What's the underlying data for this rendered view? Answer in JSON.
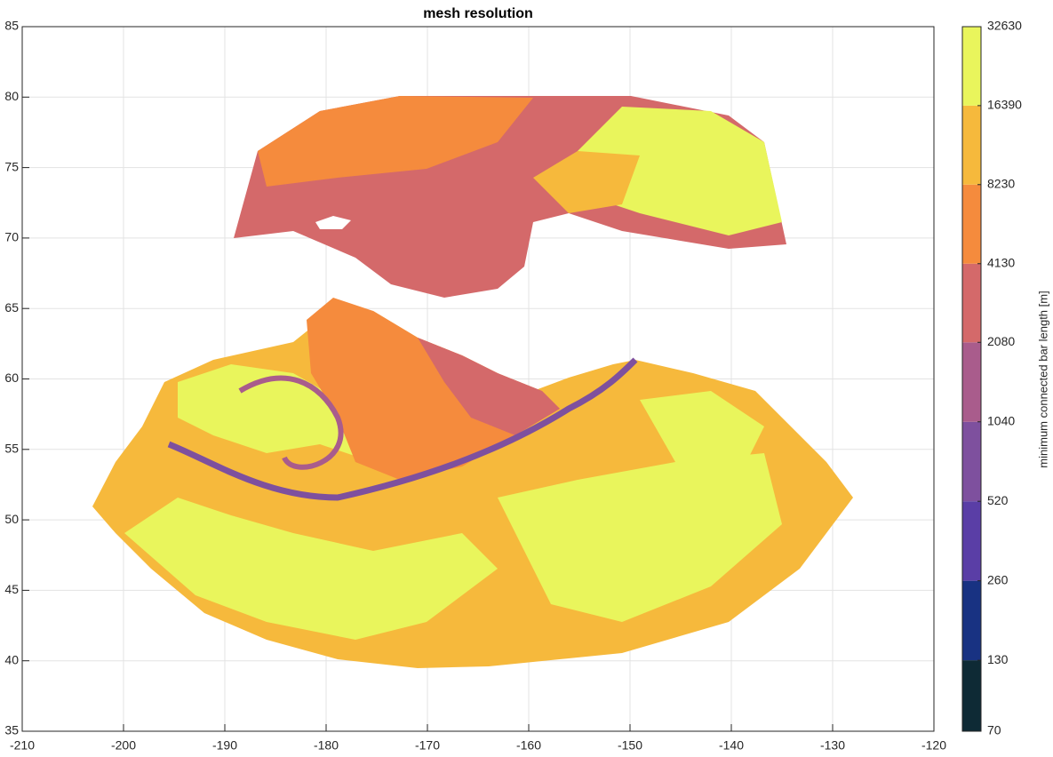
{
  "chart_data": {
    "type": "map",
    "title": "mesh resolution",
    "xlim": [
      -210,
      -120
    ],
    "xticks": [
      -210,
      -200,
      -190,
      -180,
      -170,
      -160,
      -150,
      -140,
      -130,
      -120
    ],
    "ylim": [
      35,
      85
    ],
    "yticks": [
      35,
      40,
      45,
      50,
      55,
      60,
      65,
      70,
      75,
      80,
      85
    ],
    "grid": true,
    "colorbar": {
      "label": "minimum connected bar length [m]",
      "log_scale": true,
      "lim": [
        70,
        32630
      ],
      "ticks": [
        70,
        130,
        260,
        520,
        1040,
        2080,
        4130,
        8230,
        16390,
        32630
      ],
      "colors": [
        "#0e2a35",
        "#183282",
        "#5a3ea6",
        "#7e509e",
        "#a95c8c",
        "#d4696a",
        "#f58b3d",
        "#f6b93c",
        "#e9f55c"
      ]
    }
  }
}
